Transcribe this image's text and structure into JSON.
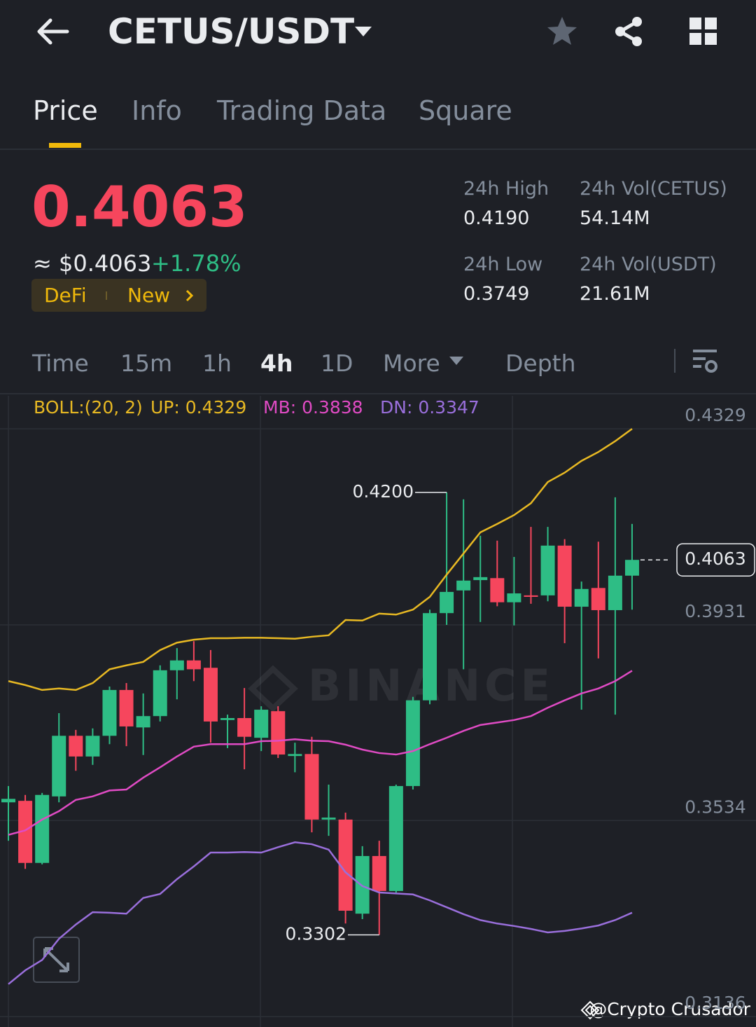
{
  "header": {
    "title": "CETUS/USDT"
  },
  "tabs": [
    "Price",
    "Info",
    "Trading Data",
    "Square"
  ],
  "ticker": {
    "price": "0.4063",
    "price_usd": "≈ $0.4063",
    "change": "+1.78%",
    "tags": [
      "DeFi",
      "New"
    ],
    "stats": [
      {
        "label": "24h High",
        "value": "0.4190"
      },
      {
        "label": "24h Vol(CETUS)",
        "value": "54.14M"
      },
      {
        "label": "24h Low",
        "value": "0.3749"
      },
      {
        "label": "24h Vol(USDT)",
        "value": "21.61M"
      }
    ]
  },
  "intervals": [
    "Time",
    "15m",
    "1h",
    "4h",
    "1D",
    "More",
    "Depth"
  ],
  "chart_data": {
    "type": "candlestick",
    "indicator": "BOLL:(20, 2)",
    "up_color": "#2ebd85",
    "down_color": "#f6465d",
    "ylim": [
      0.3115,
      0.4396
    ],
    "yticks": [
      0.4329,
      0.3931,
      0.3534,
      0.3136
    ],
    "grid": true,
    "open": [
      0.3571,
      0.3574,
      0.3448,
      0.3583,
      0.3706,
      0.3664,
      0.3706,
      0.3799,
      0.3723,
      0.3746,
      0.3839,
      0.3859,
      0.3844,
      0.3738,
      0.3742,
      0.3702,
      0.3756,
      0.3665,
      0.3669,
      0.3536,
      0.3536,
      0.3345,
      0.3462,
      0.3391,
      0.3604,
      0.3778,
      0.3955,
      0.4001,
      0.4022,
      0.4026,
      0.3977,
      0.3991,
      0.3991,
      0.4092,
      0.3968,
      0.4006,
      0.3961,
      0.4031
    ],
    "high": [
      0.3604,
      0.3586,
      0.359,
      0.3752,
      0.3718,
      0.3721,
      0.3806,
      0.3813,
      0.3792,
      0.3849,
      0.3884,
      0.3898,
      0.388,
      0.3749,
      0.3803,
      0.3766,
      0.3766,
      0.3692,
      0.3704,
      0.3607,
      0.355,
      0.3482,
      0.3493,
      0.3607,
      0.3785,
      0.3962,
      0.42,
      0.4186,
      0.4112,
      0.4102,
      0.4069,
      0.413,
      0.413,
      0.4105,
      0.4019,
      0.41,
      0.419,
      0.4136
    ],
    "low": [
      0.3493,
      0.3436,
      0.3445,
      0.3571,
      0.3635,
      0.3647,
      0.3689,
      0.3685,
      0.3667,
      0.3735,
      0.378,
      0.3817,
      0.3692,
      0.3681,
      0.3638,
      0.3675,
      0.3661,
      0.3632,
      0.351,
      0.3503,
      0.3325,
      0.3334,
      0.3302,
      0.3385,
      0.3597,
      0.377,
      0.3931,
      0.3841,
      0.3937,
      0.3969,
      0.393,
      0.3974,
      0.3979,
      0.3894,
      0.3759,
      0.3863,
      0.3749,
      0.3962
    ],
    "close": [
      0.3578,
      0.3448,
      0.3586,
      0.3706,
      0.3664,
      0.3706,
      0.3799,
      0.3725,
      0.3746,
      0.3839,
      0.3859,
      0.3841,
      0.3735,
      0.3742,
      0.3704,
      0.3759,
      0.3668,
      0.3669,
      0.3536,
      0.354,
      0.3351,
      0.3462,
      0.3391,
      0.3604,
      0.3778,
      0.3955,
      0.3998,
      0.4021,
      0.4028,
      0.3977,
      0.3995,
      0.3988,
      0.4092,
      0.3968,
      0.4004,
      0.3961,
      0.4031,
      0.4063
    ],
    "bands": [
      {
        "name": "UP: 0.4329",
        "color": "#e8b923",
        "values": [
          0.3817,
          0.3809,
          0.3799,
          0.3802,
          0.3799,
          0.3813,
          0.3841,
          0.3849,
          0.3856,
          0.388,
          0.3895,
          0.3901,
          0.3904,
          0.3904,
          0.3905,
          0.3905,
          0.3904,
          0.3903,
          0.3907,
          0.391,
          0.3941,
          0.394,
          0.3954,
          0.3952,
          0.3962,
          0.3988,
          0.4033,
          0.4076,
          0.4119,
          0.4136,
          0.4154,
          0.4178,
          0.4221,
          0.424,
          0.4264,
          0.4282,
          0.4304,
          0.4329
        ]
      },
      {
        "name": "MB: 0.3838",
        "color": "#e04bc4",
        "values": [
          0.3505,
          0.3514,
          0.3536,
          0.3553,
          0.3576,
          0.3583,
          0.3595,
          0.3597,
          0.3621,
          0.3642,
          0.3664,
          0.3684,
          0.3689,
          0.3689,
          0.3689,
          0.3695,
          0.3696,
          0.3699,
          0.3696,
          0.3695,
          0.3688,
          0.3678,
          0.3671,
          0.3668,
          0.3675,
          0.3689,
          0.3702,
          0.3716,
          0.3728,
          0.3733,
          0.3738,
          0.3746,
          0.3763,
          0.3778,
          0.3792,
          0.3802,
          0.3817,
          0.3838
        ]
      },
      {
        "name": "DN: 0.3347",
        "color": "#9a6fdc",
        "values": [
          0.3202,
          0.323,
          0.3251,
          0.3294,
          0.3323,
          0.3348,
          0.3347,
          0.3345,
          0.3377,
          0.3385,
          0.3415,
          0.3441,
          0.3469,
          0.3469,
          0.347,
          0.3469,
          0.348,
          0.349,
          0.3486,
          0.3475,
          0.3429,
          0.3401,
          0.3388,
          0.3386,
          0.3384,
          0.3372,
          0.3358,
          0.3344,
          0.3332,
          0.3325,
          0.332,
          0.3314,
          0.3307,
          0.331,
          0.3315,
          0.3321,
          0.3332,
          0.3347
        ]
      }
    ],
    "annotations": {
      "high": {
        "value": 0.42,
        "label": "0.4200"
      },
      "low": 0.3302,
      "last": 0.4063
    }
  },
  "watermark": "BINANCE",
  "credit": "@Crypto Crusador"
}
